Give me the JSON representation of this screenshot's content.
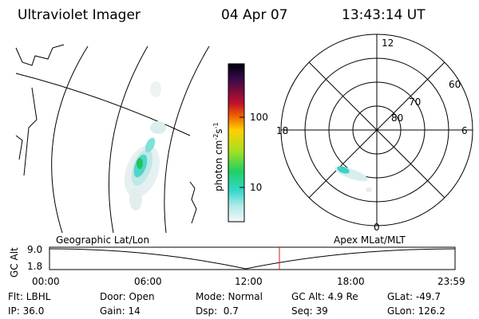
{
  "header": {
    "title": "Ultraviolet Imager",
    "date": "04 Apr 07",
    "time": "13:43:14 UT"
  },
  "colorbar": {
    "label": [
      "photon cm",
      "-2",
      "s",
      "-1"
    ],
    "ticks": [
      "100",
      "10"
    ]
  },
  "polar": {
    "mlt_labels": [
      "12",
      "18",
      "6",
      "0"
    ],
    "mlat_labels": [
      "60",
      "70",
      "80"
    ]
  },
  "altitude_plot": {
    "left_label": "Geographic Lat/Lon",
    "right_label": "Apex MLat/MLT",
    "y_label": "GC Alt",
    "y_ticks": [
      "9.0",
      "1.8"
    ],
    "x_ticks": [
      "00:00",
      "06:00",
      "12:00",
      "18:00",
      "23:59"
    ]
  },
  "footer": [
    [
      "Flt: LBHL",
      "Door: Open",
      "Mode: Normal",
      "GC Alt: 4.9 Re",
      "GLat: -49.7"
    ],
    [
      "IP: 36.0",
      "Gain: 14",
      "Dsp:  0.7",
      "Seq: 39",
      "GLon: 126.2"
    ]
  ]
}
